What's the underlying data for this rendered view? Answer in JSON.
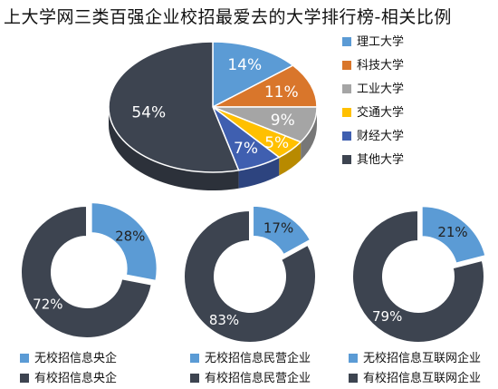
{
  "title": "上大学网三类百强企业校招最爱去的大学排行榜-相关比例",
  "chart_data": [
    {
      "type": "pie",
      "title": "",
      "legend_position": "right",
      "categories": [
        "理工大学",
        "科技大学",
        "工业大学",
        "交通大学",
        "财经大学",
        "其他大学"
      ],
      "values": [
        14,
        11,
        9,
        5,
        7,
        54
      ],
      "labels": [
        "14%",
        "11%",
        "9%",
        "5%",
        "7%",
        "54%"
      ],
      "colors": [
        "#5b9bd5",
        "#d9762b",
        "#a5a5a5",
        "#ffc000",
        "#3f5fb0",
        "#3d4450"
      ]
    },
    {
      "type": "pie",
      "style": "donut",
      "categories": [
        "无校招信息央企",
        "有校招信息央企"
      ],
      "values": [
        28,
        72
      ],
      "labels": [
        "28%",
        "72%"
      ],
      "colors": [
        "#5b9bd5",
        "#3d4450"
      ]
    },
    {
      "type": "pie",
      "style": "donut",
      "categories": [
        "无校招信息民营企业",
        "有校招信息民营企业"
      ],
      "values": [
        17,
        83
      ],
      "labels": [
        "17%",
        "83%"
      ],
      "colors": [
        "#5b9bd5",
        "#3d4450"
      ]
    },
    {
      "type": "pie",
      "style": "donut",
      "categories": [
        "无校招信息互联网企业",
        "有校招信息互联网企业"
      ],
      "values": [
        21,
        79
      ],
      "labels": [
        "21%",
        "79%"
      ],
      "colors": [
        "#5b9bd5",
        "#3d4450"
      ]
    }
  ]
}
